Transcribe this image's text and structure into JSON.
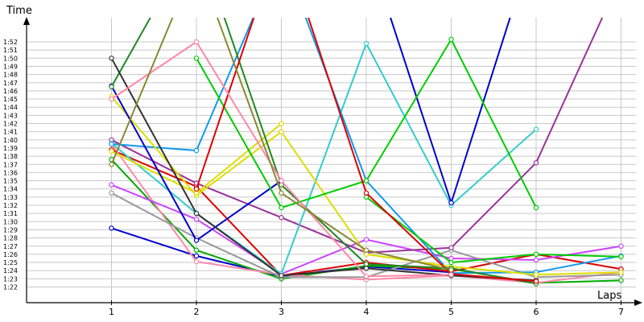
{
  "chart_data": {
    "type": "line",
    "title": "",
    "xlabel": "Laps",
    "ylabel": "Time",
    "x": [
      1,
      2,
      3,
      4,
      5,
      6,
      7
    ],
    "ylim": [
      81,
      113
    ],
    "xlim": [
      0,
      7.2
    ],
    "grid": true,
    "legend": "none",
    "y_ticks": [
      "1:22",
      "1:23",
      "1:24",
      "1:25",
      "1:26",
      "1:27",
      "1:28",
      "1:29",
      "1:30",
      "1:31",
      "1:32",
      "1:33",
      "1:34",
      "1:35",
      "1:36",
      "1:37",
      "1:38",
      "1:39",
      "1:40",
      "1:41",
      "1:42",
      "1:43",
      "1:44",
      "1:45",
      "1:46",
      "1:47",
      "1:48",
      "1:49",
      "1:50",
      "1:51",
      "1:52"
    ],
    "x_ticks": [
      "1",
      "2",
      "3",
      "4",
      "5",
      "6",
      "7"
    ],
    "series": [
      {
        "color": "#0000cc",
        "values": [
          89.2,
          85.8,
          83.3,
          84.5,
          83.8,
          null,
          null
        ]
      },
      {
        "color": "#00aa00",
        "values": [
          97.6,
          86.5,
          83.0,
          84.6,
          84.2,
          82.5,
          82.8
        ]
      },
      {
        "color": "#dd0000",
        "values": [
          98.8,
          94.3,
          83.4,
          85.0,
          83.9,
          86.0,
          84.2
        ]
      },
      {
        "color": "#ff88aa",
        "values": [
          99.5,
          85.1,
          83.5,
          82.9,
          83.4,
          82.5,
          83.8
        ]
      },
      {
        "color": "#999999",
        "values": [
          93.5,
          88.0,
          83.2,
          83.2,
          86.5,
          83.2,
          83.5
        ]
      },
      {
        "color": "#cc44ff",
        "values": [
          94.5,
          90.3,
          83.6,
          87.8,
          85.5,
          85.3,
          87.0
        ]
      },
      {
        "color": "#993399",
        "values": [
          100.0,
          94.7,
          90.5,
          86.2,
          86.8,
          97.2,
          120.0
        ]
      },
      {
        "color": "#33cccc",
        "values": [
          99.6,
          91.0,
          83.6,
          111.8,
          92.0,
          101.3,
          null
        ]
      },
      {
        "color": "#1199ee",
        "values": [
          99.5,
          98.7,
          123.0,
          95.0,
          83.7,
          83.8,
          85.8
        ]
      },
      {
        "color": "#dddd00",
        "values": [
          105.3,
          93.2,
          101.0,
          86.0,
          84.5,
          83.5,
          83.8
        ]
      },
      {
        "color": "#dddd00",
        "values": [
          98.6,
          93.5,
          102.0,
          null,
          null,
          null,
          null
        ]
      },
      {
        "color": "#0000cc",
        "values": [
          106.6,
          87.7,
          95.0,
          null,
          null,
          null,
          null
        ]
      },
      {
        "color": "#0000cc",
        "values": [
          null,
          null,
          null,
          124.0,
          92.3,
          125.0,
          null
        ]
      },
      {
        "color": "#00cc00",
        "values": [
          null,
          110.0,
          91.7,
          95.0,
          112.3,
          91.7,
          null
        ]
      },
      {
        "color": "#00cc00",
        "values": [
          null,
          null,
          null,
          93.0,
          85.0,
          86.0,
          85.7
        ]
      },
      {
        "color": "#228822",
        "values": [
          106.5,
          125.0,
          94.5,
          84.8,
          84.3,
          82.4,
          null
        ]
      },
      {
        "color": "#333333",
        "values": [
          110.0,
          91.0,
          83.4,
          84.3,
          83.4,
          82.8,
          null
        ]
      },
      {
        "color": "#dd0000",
        "values": [
          null,
          94.0,
          125.0,
          93.5,
          83.6,
          82.7,
          null
        ]
      },
      {
        "color": "#ff88aa",
        "values": [
          105.0,
          112.0,
          95.0,
          83.3,
          83.5,
          null,
          null
        ]
      },
      {
        "color": "#888833",
        "values": [
          97.0,
          122.0,
          93.5,
          86.5,
          84.1,
          null,
          null
        ]
      }
    ]
  }
}
